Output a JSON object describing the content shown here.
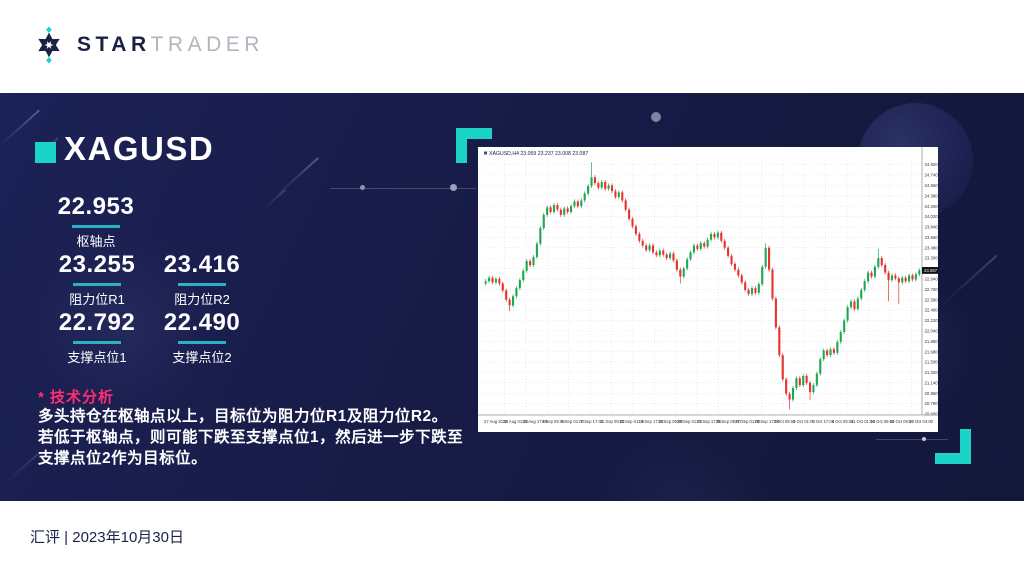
{
  "header": {
    "logo_star": "STAR",
    "logo_trader": "TRADER"
  },
  "panel": {
    "symbol": "XAGUSD",
    "pivot": {
      "value": "22.953",
      "label": "枢轴点"
    },
    "levels": [
      {
        "value": "23.255",
        "label": "阻力位R1"
      },
      {
        "value": "23.416",
        "label": "阻力位R2"
      },
      {
        "value": "22.792",
        "label": "支撑点位1"
      },
      {
        "value": "22.490",
        "label": "支撑点位2"
      }
    ],
    "analysis_title": "* 技术分析",
    "analysis_lines": [
      "多头持仓在枢轴点以上，目标位为阻力位R1及阻力位R2。",
      "若低于枢轴点，则可能下跌至支撑点位1，然后进一步下跌至",
      "支撑点位2作为目标位。"
    ]
  },
  "footer": {
    "text": "汇评 | 2023年10月30日"
  },
  "colors": {
    "accent_cyan": "#1bd3c6",
    "underline_cyan": "#2ab2c3",
    "pink": "#ff2e72",
    "panel_bg": "#171b46",
    "candle_up": "#1fa751",
    "candle_down": "#e5342c"
  },
  "chart_data": {
    "type": "candlestick",
    "title": "XAGUSD,H4 23.059 23.237 23.008 23.087",
    "symbol": "XAGUSD",
    "timeframe": "H4",
    "current_price": "23.087",
    "y_min": 20.6,
    "y_max": 25.0,
    "grid": true,
    "y_tick_labels": [
      "24.920",
      "24.740",
      "24.560",
      "24.380",
      "24.200",
      "24.020",
      "23.840",
      "23.660",
      "23.480",
      "23.300",
      "23.120",
      "22.940",
      "22.760",
      "22.580",
      "22.400",
      "22.220",
      "22.040",
      "21.860",
      "21.680",
      "21.500",
      "21.320",
      "21.140",
      "20.960",
      "20.780",
      "20.600"
    ],
    "x_tick_labels": [
      "27 Aug 2023",
      "30 Aug 01:00",
      "31 Aug 17:00",
      "4 Sep 09:00",
      "6 Sep 01:00",
      "7 Sep 17:00",
      "11 Sep 09:00",
      "13 Sep 01:00",
      "14 Sep 17:00",
      "18 Sep 09:00",
      "20 Sep 01:00",
      "21 Sep 17:00",
      "25 Sep 09:00",
      "27 Sep 01:00",
      "28 Sep 17:00",
      "2 Oct 09:00",
      "4 Oct 01:00",
      "5 Oct 17:00",
      "9 Oct 09:00",
      "11 Oct 01:00",
      "16 Oct 09:00",
      "24 Oct 09:00",
      "27 Oct 04:00"
    ],
    "closes": [
      22.9,
      22.96,
      22.88,
      22.94,
      22.86,
      22.74,
      22.58,
      22.48,
      22.64,
      22.78,
      22.92,
      23.08,
      23.25,
      23.18,
      23.32,
      23.55,
      23.82,
      24.05,
      24.18,
      24.1,
      24.22,
      24.14,
      24.05,
      24.16,
      24.1,
      24.2,
      24.28,
      24.2,
      24.3,
      24.42,
      24.55,
      24.7,
      24.6,
      24.52,
      24.62,
      24.5,
      24.56,
      24.46,
      24.36,
      24.44,
      24.3,
      24.14,
      23.98,
      23.85,
      23.72,
      23.6,
      23.52,
      23.44,
      23.52,
      23.4,
      23.35,
      23.43,
      23.36,
      23.3,
      23.38,
      23.26,
      23.1,
      22.98,
      23.12,
      23.28,
      23.4,
      23.52,
      23.46,
      23.56,
      23.5,
      23.62,
      23.72,
      23.66,
      23.74,
      23.6,
      23.48,
      23.34,
      23.2,
      23.1,
      23.0,
      22.88,
      22.75,
      22.68,
      22.78,
      22.7,
      22.85,
      23.15,
      23.48,
      23.1,
      22.6,
      22.1,
      21.62,
      21.2,
      20.95,
      20.85,
      21.05,
      21.22,
      21.1,
      21.26,
      21.14,
      20.98,
      21.1,
      21.3,
      21.55,
      21.7,
      21.62,
      21.72,
      21.66,
      21.85,
      22.02,
      22.22,
      22.45,
      22.55,
      22.42,
      22.6,
      22.75,
      22.9,
      23.05,
      22.98,
      23.15,
      23.3,
      23.18,
      23.05,
      22.92,
      23.0,
      22.95,
      22.88,
      22.96,
      22.9,
      23.0,
      22.93,
      23.02,
      23.09
    ],
    "spikes": [
      {
        "i": 7,
        "low": 22.38
      },
      {
        "i": 31,
        "high": 24.96
      },
      {
        "i": 57,
        "low": 22.86
      },
      {
        "i": 82,
        "high": 23.56
      },
      {
        "i": 89,
        "low": 20.68
      },
      {
        "i": 95,
        "low": 20.84
      },
      {
        "i": 115,
        "high": 23.46
      },
      {
        "i": 118,
        "low": 22.55
      },
      {
        "i": 121,
        "low": 22.5
      }
    ]
  }
}
